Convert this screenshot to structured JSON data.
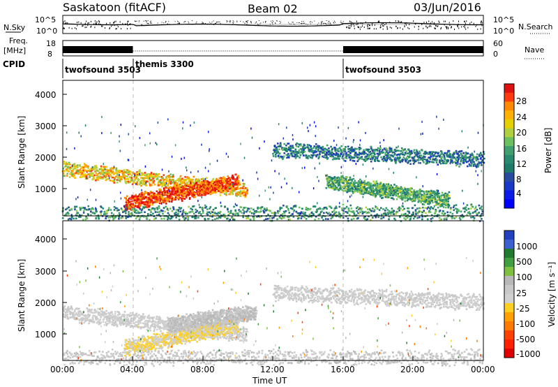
{
  "header": {
    "station": "Saskatoon (fitACF)",
    "beam": "Beam 02",
    "date": "03/Jun/2016"
  },
  "left_labels": {
    "nsky": "N.Sky",
    "freq": "Freq.",
    "freq_unit": "[MHz]",
    "cpid": "CPID"
  },
  "right_labels": {
    "nsearch": "N.Search",
    "nave": "Nave"
  },
  "cpid_segments": [
    {
      "label": "twofsound 3503",
      "start_hour": 0
    },
    {
      "label": "themis 3300",
      "start_hour": 4
    },
    {
      "label": "twofsound 3503",
      "start_hour": 16
    }
  ],
  "colorbar_power": {
    "label": "Power [dB]",
    "ticks": [
      "28",
      "24",
      "20",
      "16",
      "12",
      "8",
      "4"
    ],
    "colors": [
      "#e01010",
      "#ff3a10",
      "#ff8a00",
      "#ffb000",
      "#e6d000",
      "#b0d040",
      "#6cc060",
      "#40a070",
      "#2a8a70",
      "#1e7a6a",
      "#284aa0",
      "#1838c8",
      "#0a1ae8",
      "#0000ff"
    ]
  },
  "colorbar_velocity": {
    "label": "Velocity [m s⁻¹]",
    "ticks": [
      "1000",
      "500",
      "100",
      "25",
      "-25",
      "-100",
      "-500",
      "-1000"
    ],
    "colors": [
      "#2040c0",
      "#3c60d0",
      "#207a30",
      "#40a040",
      "#80c040",
      "#b8b8b8",
      "#c8c8c8",
      "#d0d0d0",
      "#ffd020",
      "#ffa000",
      "#ff7a00",
      "#ff4000",
      "#ff2000",
      "#e00000"
    ]
  },
  "axes": {
    "ylabel": "Slant Range [km]",
    "yticks": [
      "4000",
      "3000",
      "2000",
      "1000"
    ],
    "xlabel": "Time UT",
    "xticks": [
      "00:00",
      "04:00",
      "08:00",
      "12:00",
      "16:00",
      "20:00",
      "00:00"
    ],
    "nsky_ticks": [
      "10^5",
      "10^0"
    ],
    "freq_ticks": [
      "18",
      "8"
    ],
    "nave_ticks": [
      "60",
      "0"
    ]
  },
  "chart_data": [
    {
      "type": "heatmap",
      "title": "Power",
      "ylabel": "Slant Range [km]",
      "xlabel": "Time UT",
      "x_range_hours": [
        0,
        24
      ],
      "y_range_km": [
        180,
        4500
      ],
      "colorbar": "Power [dB]",
      "color_range_db": [
        0,
        30
      ],
      "mode_change_hours": [
        4,
        16
      ],
      "features": [
        {
          "name": "band_a",
          "t_start": 0,
          "t_end": 10.5,
          "range_start_km": 1700,
          "range_end_km": 1000,
          "power_db": 22
        },
        {
          "name": "band_b",
          "t_start": 3.5,
          "t_end": 10,
          "range_start_km": 600,
          "range_end_km": 1300,
          "power_db": 28
        },
        {
          "name": "band_c",
          "t_start": 12,
          "t_end": 24,
          "range_start_km": 2300,
          "range_end_km": 2000,
          "power_db": 10
        },
        {
          "name": "band_d",
          "t_start": 15,
          "t_end": 22,
          "range_start_km": 1300,
          "range_end_km": 700,
          "power_db": 14
        },
        {
          "name": "band_e",
          "t_start": 0,
          "t_end": 24,
          "range_start_km": 300,
          "range_end_km": 300,
          "power_db": 12
        }
      ]
    },
    {
      "type": "heatmap",
      "title": "Velocity",
      "ylabel": "Slant Range [km]",
      "xlabel": "Time UT",
      "x_range_hours": [
        0,
        24
      ],
      "y_range_km": [
        180,
        4500
      ],
      "colorbar": "Velocity [m s⁻¹]",
      "color_range_ms": [
        -1000,
        1000
      ],
      "mode_change_hours": [
        4,
        16
      ],
      "features": [
        {
          "name": "band_a",
          "t_start": 0,
          "t_end": 10.5,
          "range_start_km": 1700,
          "range_end_km": 1000,
          "velocity_ms": 0
        },
        {
          "name": "band_b",
          "t_start": 3.5,
          "t_end": 10,
          "range_start_km": 600,
          "range_end_km": 1300,
          "velocity_ms": -150
        },
        {
          "name": "band_b_upper",
          "t_start": 6,
          "t_end": 11,
          "range_start_km": 1300,
          "range_end_km": 1700,
          "velocity_ms": 150
        },
        {
          "name": "band_c",
          "t_start": 12,
          "t_end": 24,
          "range_start_km": 2300,
          "range_end_km": 2000,
          "velocity_ms": 0
        },
        {
          "name": "band_e",
          "t_start": 0,
          "t_end": 24,
          "range_start_km": 300,
          "range_end_km": 300,
          "velocity_ms": 60
        }
      ]
    }
  ]
}
